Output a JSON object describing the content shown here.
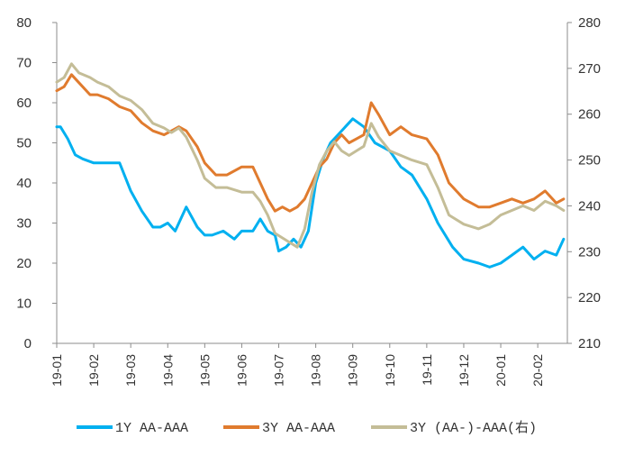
{
  "chart_data": {
    "type": "line",
    "title": "",
    "xlabel": "",
    "ylabel": "",
    "ylim_left": [
      0,
      80
    ],
    "ylim_right": [
      210,
      280
    ],
    "yticks_left": [
      0,
      10,
      20,
      30,
      40,
      50,
      60,
      70,
      80
    ],
    "yticks_right": [
      210,
      220,
      230,
      240,
      250,
      260,
      270,
      280
    ],
    "x_categories": [
      "19-01",
      "19-02",
      "19-03",
      "19-04",
      "19-05",
      "19-06",
      "19-07",
      "19-08",
      "19-09",
      "19-10",
      "19-11",
      "19-12",
      "20-01",
      "20-02"
    ],
    "x_range": [
      0,
      13.8
    ],
    "grid": false,
    "legend_position": "bottom",
    "series": [
      {
        "name": "1Y AA-AAA",
        "axis": "left",
        "color": "#00B0F0",
        "x": [
          0,
          0.1,
          0.3,
          0.5,
          0.7,
          1.0,
          1.2,
          1.4,
          1.7,
          2.0,
          2.3,
          2.6,
          2.8,
          3.0,
          3.2,
          3.5,
          3.8,
          4.0,
          4.2,
          4.5,
          4.8,
          5.0,
          5.3,
          5.5,
          5.7,
          5.9,
          6.0,
          6.2,
          6.4,
          6.6,
          6.8,
          7.0,
          7.2,
          7.4,
          7.6,
          7.8,
          8.0,
          8.3,
          8.6,
          9.0,
          9.3,
          9.6,
          10.0,
          10.3,
          10.7,
          11.0,
          11.4,
          11.7,
          12.0,
          12.3,
          12.6,
          12.9,
          13.2,
          13.5,
          13.7
        ],
        "values": [
          54,
          54,
          51,
          47,
          46,
          45,
          45,
          45,
          45,
          38,
          33,
          29,
          29,
          30,
          28,
          34,
          29,
          27,
          27,
          28,
          26,
          28,
          28,
          31,
          28,
          27,
          23,
          24,
          26,
          24,
          28,
          40,
          46,
          50,
          52,
          54,
          56,
          54,
          50,
          48,
          44,
          42,
          36,
          30,
          24,
          21,
          20,
          19,
          20,
          22,
          24,
          21,
          23,
          22,
          26
        ]
      },
      {
        "name": "3Y AA-AAA",
        "axis": "left",
        "color": "#E07B2E",
        "x": [
          0,
          0.2,
          0.4,
          0.6,
          0.9,
          1.1,
          1.4,
          1.7,
          2.0,
          2.3,
          2.6,
          2.9,
          3.1,
          3.3,
          3.5,
          3.8,
          4.0,
          4.3,
          4.6,
          5.0,
          5.3,
          5.5,
          5.7,
          5.9,
          6.1,
          6.3,
          6.5,
          6.7,
          6.9,
          7.1,
          7.3,
          7.5,
          7.7,
          7.9,
          8.1,
          8.3,
          8.5,
          8.7,
          9.0,
          9.3,
          9.6,
          10.0,
          10.3,
          10.6,
          11.0,
          11.4,
          11.7,
          12.0,
          12.3,
          12.6,
          12.9,
          13.2,
          13.5,
          13.7
        ],
        "values": [
          63,
          64,
          67,
          65,
          62,
          62,
          61,
          59,
          58,
          55,
          53,
          52,
          53,
          54,
          53,
          49,
          45,
          42,
          42,
          44,
          44,
          40,
          36,
          33,
          34,
          33,
          34,
          36,
          40,
          44,
          46,
          50,
          52,
          50,
          51,
          52,
          60,
          57,
          52,
          54,
          52,
          51,
          47,
          40,
          36,
          34,
          34,
          35,
          36,
          35,
          36,
          38,
          35,
          36
        ]
      },
      {
        "name": "3Y (AA-)-AAA(右)",
        "axis": "right",
        "color": "#C4BD97",
        "x": [
          0,
          0.2,
          0.4,
          0.6,
          0.9,
          1.1,
          1.4,
          1.7,
          2.0,
          2.3,
          2.6,
          2.9,
          3.1,
          3.3,
          3.5,
          3.8,
          4.0,
          4.3,
          4.6,
          5.0,
          5.3,
          5.5,
          5.7,
          5.9,
          6.1,
          6.3,
          6.5,
          6.7,
          6.9,
          7.1,
          7.3,
          7.5,
          7.7,
          7.9,
          8.1,
          8.3,
          8.5,
          8.7,
          9.0,
          9.3,
          9.6,
          10.0,
          10.3,
          10.6,
          11.0,
          11.4,
          11.7,
          12.0,
          12.3,
          12.6,
          12.9,
          13.2,
          13.5,
          13.7
        ],
        "values": [
          267,
          268,
          271,
          269,
          268,
          267,
          266,
          264,
          263,
          261,
          258,
          257,
          256,
          257,
          255,
          250,
          246,
          244,
          244,
          243,
          243,
          241,
          238,
          234,
          233,
          232,
          231,
          235,
          243,
          249,
          252,
          254,
          252,
          251,
          252,
          253,
          258,
          255,
          252,
          251,
          250,
          249,
          244,
          238,
          236,
          235,
          236,
          238,
          239,
          240,
          239,
          241,
          240,
          239
        ]
      }
    ]
  }
}
